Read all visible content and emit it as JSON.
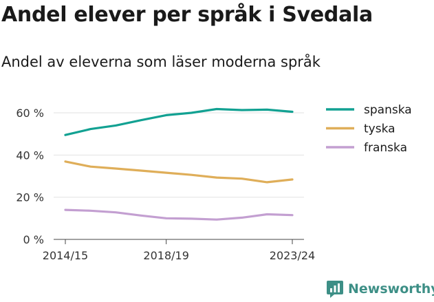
{
  "title": "Andel elever per språk i Svedala",
  "subtitle": "Andel av eleverna som läser moderna språk",
  "brand": {
    "name": "Newsworthy",
    "icon": "bar-chart-logo-icon",
    "color": "#3d8f86"
  },
  "chart_data": {
    "type": "line",
    "x": [
      "2014/15",
      "2015/16",
      "2016/17",
      "2017/18",
      "2018/19",
      "2019/20",
      "2020/21",
      "2021/22",
      "2022/23",
      "2023/24"
    ],
    "xticks": [
      "2014/15",
      "2018/19",
      "2023/24"
    ],
    "yticks": [
      "0 %",
      "20 %",
      "40 %",
      "60 %"
    ],
    "ytick_values": [
      0,
      20,
      40,
      60
    ],
    "ylim": [
      0,
      65
    ],
    "grid": true,
    "legend": "right",
    "series": [
      {
        "name": "spanska",
        "color": "#12a192",
        "values": [
          49.5,
          52.3,
          54.0,
          56.5,
          58.9,
          60.0,
          61.8,
          61.3,
          61.5,
          60.5
        ]
      },
      {
        "name": "tyska",
        "color": "#dfae59",
        "values": [
          36.9,
          34.5,
          33.6,
          32.6,
          31.6,
          30.6,
          29.3,
          28.8,
          27.1,
          28.4
        ]
      },
      {
        "name": "franska",
        "color": "#c39fd1",
        "values": [
          14.0,
          13.6,
          12.8,
          11.3,
          10.0,
          9.8,
          9.4,
          10.3,
          11.9,
          11.5
        ]
      }
    ]
  }
}
